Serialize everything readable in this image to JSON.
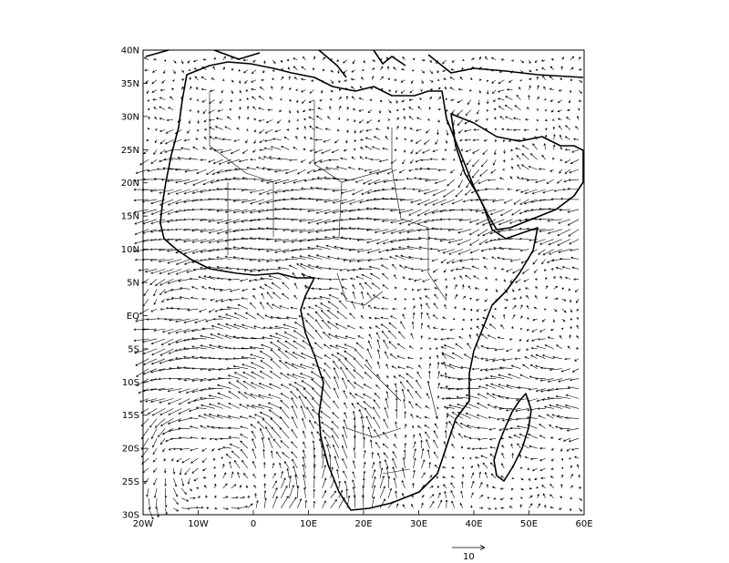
{
  "map": {
    "lon_range": [
      -20,
      60
    ],
    "lat_range": [
      -30,
      40
    ],
    "x_ticks": [
      {
        "value": -20,
        "label": "20W"
      },
      {
        "value": -10,
        "label": "10W"
      },
      {
        "value": 0,
        "label": "0"
      },
      {
        "value": 10,
        "label": "10E"
      },
      {
        "value": 20,
        "label": "20E"
      },
      {
        "value": 30,
        "label": "30E"
      },
      {
        "value": 40,
        "label": "40E"
      },
      {
        "value": 50,
        "label": "50E"
      },
      {
        "value": 60,
        "label": "60E"
      }
    ],
    "y_ticks": [
      {
        "value": 40,
        "label": "40N"
      },
      {
        "value": 35,
        "label": "35N"
      },
      {
        "value": 30,
        "label": "30N"
      },
      {
        "value": 25,
        "label": "25N"
      },
      {
        "value": 20,
        "label": "20N"
      },
      {
        "value": 15,
        "label": "15N"
      },
      {
        "value": 10,
        "label": "10N"
      },
      {
        "value": 5,
        "label": "5N"
      },
      {
        "value": 0,
        "label": "EQ"
      },
      {
        "value": -5,
        "label": "5S"
      },
      {
        "value": -10,
        "label": "10S"
      },
      {
        "value": -15,
        "label": "15S"
      },
      {
        "value": -20,
        "label": "20S"
      },
      {
        "value": -25,
        "label": "25S"
      },
      {
        "value": -30,
        "label": "30S"
      }
    ],
    "reference_vector": {
      "label": "10",
      "magnitude": 10
    }
  }
}
